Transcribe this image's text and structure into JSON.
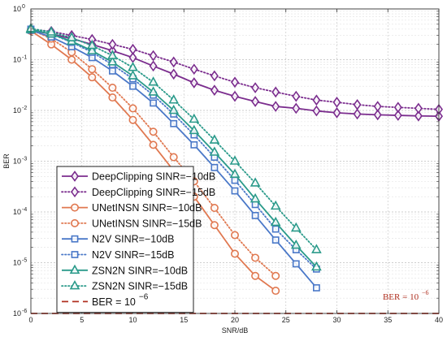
{
  "chart_data": {
    "type": "line",
    "xlabel": "SNR/dB",
    "ylabel": "BER",
    "xlim": [
      0,
      40
    ],
    "ylim": [
      1e-06,
      1
    ],
    "yscale": "log",
    "x_ticks": [
      "0",
      "5",
      "10",
      "15",
      "20",
      "25",
      "30",
      "35",
      "40"
    ],
    "x_tick_values": [
      0,
      5,
      10,
      15,
      20,
      25,
      30,
      35,
      40
    ],
    "y_ticks": [
      {
        "base": "10",
        "exp": "0",
        "value": 1
      },
      {
        "base": "10",
        "exp": "-1",
        "value": 0.1
      },
      {
        "base": "10",
        "exp": "-2",
        "value": 0.01
      },
      {
        "base": "10",
        "exp": "-3",
        "value": 0.001
      },
      {
        "base": "10",
        "exp": "-4",
        "value": 0.0001
      },
      {
        "base": "10",
        "exp": "-5",
        "value": 1e-05
      },
      {
        "base": "10",
        "exp": "-6",
        "value": 1e-06
      }
    ],
    "grid": true,
    "legend_position": "lower-left",
    "annotation": {
      "text": "BER = 10",
      "exp": "−6",
      "x": 34.5,
      "y": 1.3e-06
    },
    "series": [
      {
        "name": "DeepClipping SINR=−10dB",
        "color": "#7b2d8e",
        "dash": "solid",
        "marker": "diamond",
        "x": [
          0,
          2,
          4,
          6,
          8,
          10,
          12,
          14,
          16,
          18,
          20,
          22,
          24,
          26,
          28,
          30,
          32,
          34,
          36,
          38,
          40
        ],
        "y": [
          0.38,
          0.32,
          0.26,
          0.2,
          0.15,
          0.11,
          0.075,
          0.052,
          0.035,
          0.025,
          0.019,
          0.015,
          0.012,
          0.011,
          0.0098,
          0.009,
          0.0085,
          0.0082,
          0.008,
          0.0078,
          0.0077
        ]
      },
      {
        "name": "DeepClipping SINR=−15dB",
        "color": "#7b2d8e",
        "dash": "dotted",
        "marker": "diamond",
        "x": [
          0,
          2,
          4,
          6,
          8,
          10,
          12,
          14,
          16,
          18,
          20,
          22,
          24,
          26,
          28,
          30,
          32,
          34,
          36,
          38,
          40
        ],
        "y": [
          0.4,
          0.36,
          0.3,
          0.25,
          0.2,
          0.16,
          0.12,
          0.09,
          0.065,
          0.048,
          0.036,
          0.028,
          0.023,
          0.019,
          0.016,
          0.0145,
          0.013,
          0.012,
          0.0115,
          0.011,
          0.0105
        ]
      },
      {
        "name": "UNetINSN SINR=−10dB",
        "color": "#e07850",
        "dash": "solid",
        "marker": "circle",
        "x": [
          0,
          2,
          4,
          6,
          8,
          10,
          12,
          14,
          16,
          18,
          20,
          22,
          24
        ],
        "y": [
          0.37,
          0.2,
          0.1,
          0.045,
          0.018,
          0.0065,
          0.0021,
          0.00065,
          0.0002,
          5.5e-05,
          1.5e-05,
          5.5e-06,
          2.8e-06
        ]
      },
      {
        "name": "UNetINSN SINR=−15dB",
        "color": "#e07850",
        "dash": "dotted",
        "marker": "circle",
        "x": [
          0,
          2,
          4,
          6,
          8,
          10,
          12,
          14,
          16,
          18,
          20,
          22,
          24
        ],
        "y": [
          0.39,
          0.26,
          0.14,
          0.065,
          0.028,
          0.011,
          0.0038,
          0.0012,
          0.0004,
          0.00012,
          3.5e-05,
          1.25e-05,
          5.5e-06
        ]
      },
      {
        "name": "N2V SINR=−10dB",
        "color": "#4a78c8",
        "dash": "solid",
        "marker": "square",
        "x": [
          0,
          2,
          4,
          6,
          8,
          10,
          12,
          14,
          16,
          18,
          20,
          22,
          24,
          26,
          28
        ],
        "y": [
          0.38,
          0.28,
          0.18,
          0.11,
          0.06,
          0.03,
          0.014,
          0.0055,
          0.0021,
          0.00075,
          0.00026,
          8.5e-05,
          2.8e-05,
          9.5e-06,
          3.2e-06
        ]
      },
      {
        "name": "N2V SINR=−15dB",
        "color": "#4a78c8",
        "dash": "dotted",
        "marker": "square",
        "x": [
          0,
          2,
          4,
          6,
          8,
          10,
          12,
          14,
          16,
          18,
          20,
          22,
          24,
          26,
          28
        ],
        "y": [
          0.4,
          0.32,
          0.22,
          0.14,
          0.08,
          0.042,
          0.02,
          0.0085,
          0.0033,
          0.0012,
          0.00042,
          0.00014,
          4.6e-05,
          1.8e-05,
          7.5e-06
        ]
      },
      {
        "name": "ZSN2N SINR=−10dB",
        "color": "#2a9a8a",
        "dash": "solid",
        "marker": "triangle",
        "x": [
          0,
          2,
          4,
          6,
          8,
          10,
          12,
          14,
          16,
          18,
          20,
          22,
          24,
          26,
          28
        ],
        "y": [
          0.39,
          0.32,
          0.23,
          0.15,
          0.09,
          0.048,
          0.023,
          0.01,
          0.004,
          0.0015,
          0.00055,
          0.00018,
          6.2e-05,
          2.2e-05,
          8.2e-06
        ]
      },
      {
        "name": "ZSN2N SINR=−15dB",
        "color": "#2a9a8a",
        "dash": "dotted",
        "marker": "triangle",
        "x": [
          0,
          2,
          4,
          6,
          8,
          10,
          12,
          14,
          16,
          18,
          20,
          22,
          24,
          26,
          28
        ],
        "y": [
          0.41,
          0.35,
          0.27,
          0.19,
          0.12,
          0.07,
          0.036,
          0.016,
          0.0067,
          0.0026,
          0.001,
          0.00037,
          0.00013,
          4.8e-05,
          1.8e-05
        ]
      },
      {
        "name": "BER = 10",
        "name_exp": "−6",
        "color": "#b03020",
        "dash": "dashed",
        "marker": "none",
        "x": [
          0,
          40
        ],
        "y": [
          1e-06,
          1e-06
        ]
      }
    ]
  }
}
